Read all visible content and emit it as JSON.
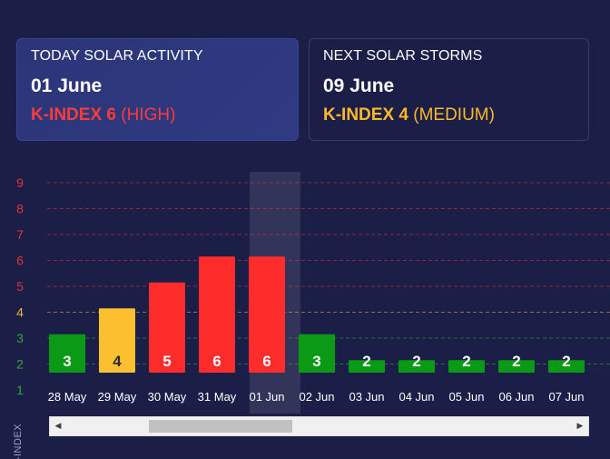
{
  "cards": {
    "today": {
      "heading": "TODAY SOLAR ACTIVITY",
      "date": "01 June",
      "k_strong": "K-INDEX 6",
      "k_level": " (HIGH)",
      "color": "#ff3b3b"
    },
    "next": {
      "heading": "NEXT SOLAR STORMS",
      "date": "09 June",
      "k_strong": "K-INDEX 4",
      "k_level": " (MEDIUM)",
      "color": "#fbb829"
    }
  },
  "chart_data": {
    "type": "bar",
    "categories": [
      "28 May",
      "29 May",
      "30 May",
      "31 May",
      "01 Jun",
      "02 Jun",
      "03 Jun",
      "04 Jun",
      "05 Jun",
      "06 Jun",
      "07 Jun"
    ],
    "values": [
      3,
      4,
      5,
      6,
      6,
      3,
      2,
      2,
      2,
      2,
      2
    ],
    "ylabel": "K-INDEX",
    "ylim": [
      1,
      9
    ],
    "yticks": [
      "1",
      "2",
      "3",
      "4",
      "5",
      "6",
      "7",
      "8",
      "9"
    ],
    "highlighted_category": "01 Jun",
    "colors": {
      "low": "#0a9a16",
      "medium": "#fbbf2f",
      "high": "#ff2c2c",
      "tick_low": "#2fa83a",
      "tick_medium": "#f0b43a",
      "tick_high": "#e0323c"
    }
  },
  "scrollbar": {
    "left_arrow": "◀",
    "right_arrow": "▶"
  }
}
